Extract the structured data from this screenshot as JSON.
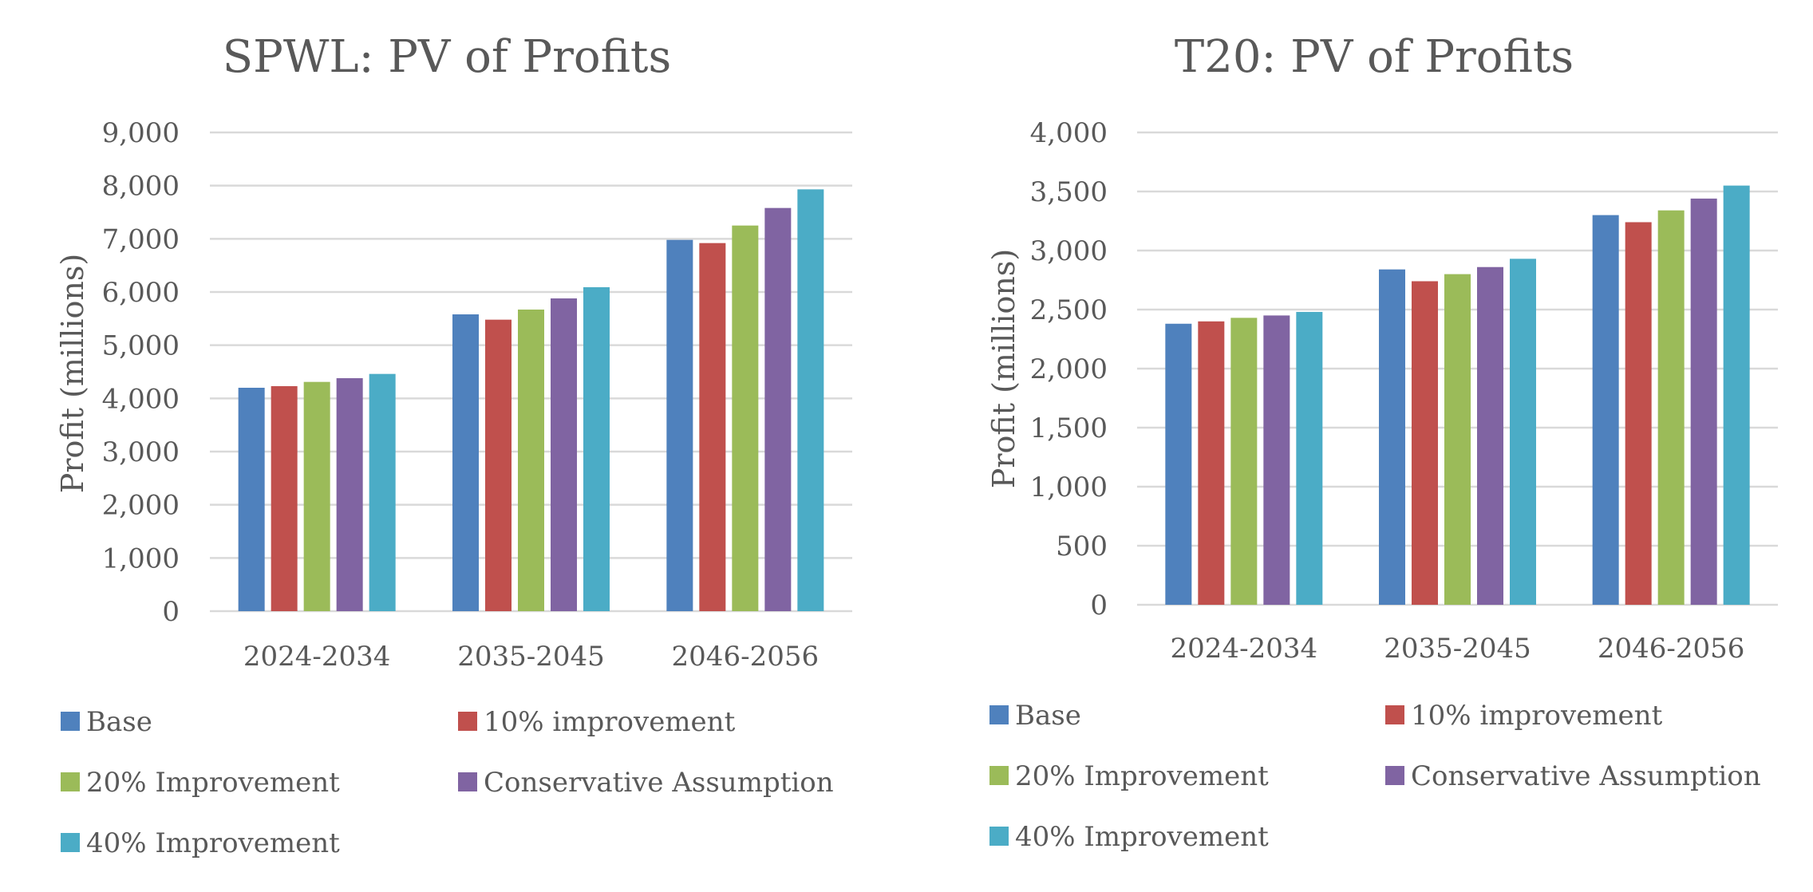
{
  "chart_data": [
    {
      "type": "bar",
      "title": "SPWL: PV of Profits",
      "xlabel": "",
      "ylabel": "Profit (millions)",
      "ylim": [
        0,
        9000
      ],
      "yticks": [
        "0",
        "1,000",
        "2,000",
        "3,000",
        "4,000",
        "5,000",
        "6,000",
        "7,000",
        "8,000",
        "9,000"
      ],
      "categories": [
        "2024-2034",
        "2035-2045",
        "2046-2056"
      ],
      "series": [
        {
          "name": "Base",
          "color": "#4F81BD",
          "values": [
            4200,
            5580,
            6980
          ]
        },
        {
          "name": "10% improvement",
          "color": "#C0504D",
          "values": [
            4230,
            5480,
            6920
          ]
        },
        {
          "name": "20% Improvement",
          "color": "#9BBB59",
          "values": [
            4310,
            5670,
            7250
          ]
        },
        {
          "name": "Conservative Assumption",
          "color": "#8064A2",
          "values": [
            4380,
            5880,
            7580
          ]
        },
        {
          "name": "40% Improvement",
          "color": "#4BACC6",
          "values": [
            4460,
            6090,
            7930
          ]
        }
      ],
      "grid": true,
      "legend": "bottom"
    },
    {
      "type": "bar",
      "title": "T20: PV of Profits",
      "xlabel": "",
      "ylabel": "Profit (millions)",
      "ylim": [
        0,
        4000
      ],
      "yticks": [
        "0",
        "500",
        "1,000",
        "1,500",
        "2,000",
        "2,500",
        "3,000",
        "3,500",
        "4,000"
      ],
      "categories": [
        "2024-2034",
        "2035-2045",
        "2046-2056"
      ],
      "series": [
        {
          "name": "Base",
          "color": "#4F81BD",
          "values": [
            2380,
            2840,
            3300
          ]
        },
        {
          "name": "10% improvement",
          "color": "#C0504D",
          "values": [
            2400,
            2740,
            3240
          ]
        },
        {
          "name": "20% Improvement",
          "color": "#9BBB59",
          "values": [
            2430,
            2800,
            3340
          ]
        },
        {
          "name": "Conservative Assumption",
          "color": "#8064A2",
          "values": [
            2450,
            2860,
            3440
          ]
        },
        {
          "name": "40% Improvement",
          "color": "#4BACC6",
          "values": [
            2480,
            2930,
            3550
          ]
        }
      ],
      "grid": true,
      "legend": "bottom"
    }
  ]
}
